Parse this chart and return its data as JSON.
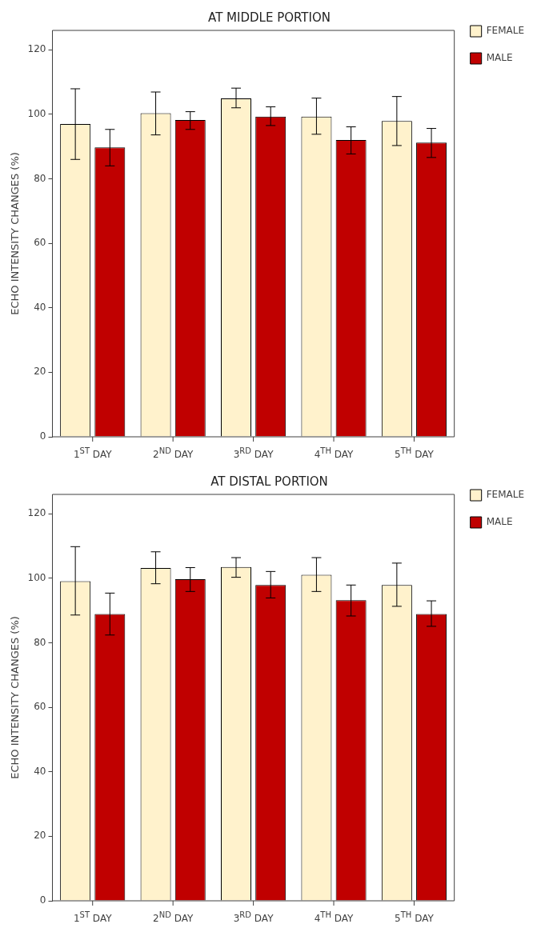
{
  "chart_data": [
    {
      "type": "bar",
      "title": "AT MIDDLE PORTION",
      "ylabel": "ECHO INTENSITY CHANGES (%)",
      "categories": [
        "1$^{ST}$ DAY",
        "2$^{ND}$ DAY",
        "3$^{RD}$ DAY",
        "4$^{TH}$ DAY",
        "5$^{TH}$ DAY"
      ],
      "series": [
        {
          "name": "FEMALE",
          "color": "#fff2cc",
          "values": [
            97.0,
            100.3,
            104.9,
            99.3,
            97.9
          ],
          "errors": [
            [
              86.0,
              107.9
            ],
            [
              93.6,
              106.9
            ],
            [
              102.0,
              108.1
            ],
            [
              93.8,
              105.0
            ],
            [
              90.3,
              105.5
            ]
          ]
        },
        {
          "name": "MALE",
          "color": "#c00000",
          "values": [
            89.7,
            98.2,
            99.3,
            92.0,
            91.2
          ],
          "errors": [
            [
              84.0,
              95.3
            ],
            [
              95.3,
              100.8
            ],
            [
              96.5,
              102.3
            ],
            [
              87.7,
              96.1
            ],
            [
              86.6,
              95.6
            ]
          ]
        }
      ],
      "ylim": [
        0,
        126
      ],
      "yticks": [
        0,
        20,
        40,
        60,
        80,
        100,
        120
      ],
      "legend": "top right"
    },
    {
      "type": "bar",
      "title": "AT DISTAL PORTION",
      "ylabel": "ECHO INTENSITY CHANGES (%)",
      "categories": [
        "1$^{ST}$ DAY",
        "2$^{ND}$ DAY",
        "3$^{RD}$ DAY",
        "4$^{TH}$ DAY",
        "5$^{TH}$ DAY"
      ],
      "series": [
        {
          "name": "FEMALE",
          "color": "#fff2cc",
          "values": [
            99.1,
            103.2,
            103.5,
            101.1,
            97.9
          ],
          "errors": [
            [
              88.6,
              109.8
            ],
            [
              98.3,
              108.2
            ],
            [
              100.3,
              106.4
            ],
            [
              95.9,
              106.4
            ],
            [
              91.3,
              104.7
            ]
          ]
        },
        {
          "name": "MALE",
          "color": "#c00000",
          "values": [
            88.9,
            99.7,
            97.9,
            93.2,
            88.9
          ],
          "errors": [
            [
              82.4,
              95.4
            ],
            [
              95.9,
              103.3
            ],
            [
              93.9,
              102.1
            ],
            [
              88.3,
              97.9
            ],
            [
              85.1,
              93.0
            ]
          ]
        }
      ],
      "ylim": [
        0,
        126
      ],
      "yticks": [
        0,
        20,
        40,
        60,
        80,
        100,
        120
      ],
      "legend": "top right"
    }
  ]
}
